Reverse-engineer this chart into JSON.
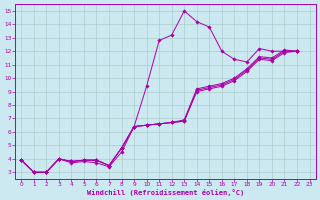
{
  "bg_color": "#cce8f0",
  "grid_color": "#aacccc",
  "line_color": "#aa00aa",
  "xlabel": "Windchill (Refroidissement éolien,°C)",
  "xlim": [
    -0.5,
    23.5
  ],
  "ylim": [
    2.5,
    15.5
  ],
  "xticks": [
    0,
    1,
    2,
    3,
    4,
    5,
    6,
    7,
    8,
    9,
    10,
    11,
    12,
    13,
    14,
    15,
    16,
    17,
    18,
    19,
    20,
    21,
    22,
    23
  ],
  "yticks": [
    3,
    4,
    5,
    6,
    7,
    8,
    9,
    10,
    11,
    12,
    13,
    14,
    15
  ],
  "series": [
    {
      "x": [
        0,
        1,
        2,
        3,
        4,
        5,
        6,
        7,
        8,
        9,
        10,
        11,
        12,
        13,
        14,
        15,
        16,
        17,
        18,
        19,
        20,
        21,
        22
      ],
      "y": [
        3.9,
        3.0,
        3.0,
        4.0,
        3.7,
        3.8,
        3.7,
        3.4,
        4.5,
        6.4,
        9.4,
        12.8,
        13.2,
        15.0,
        14.2,
        13.8,
        12.0,
        11.4,
        11.2,
        12.2,
        12.0,
        12.0,
        12.0
      ]
    },
    {
      "x": [
        0,
        1,
        2,
        3,
        4,
        5,
        6,
        7,
        8,
        9,
        10,
        11,
        12,
        13,
        14,
        15,
        16,
        17,
        18,
        19,
        20,
        21,
        22
      ],
      "y": [
        3.9,
        3.0,
        3.0,
        4.0,
        3.8,
        3.9,
        3.9,
        3.5,
        4.8,
        6.4,
        6.5,
        6.6,
        6.7,
        6.8,
        9.0,
        9.2,
        9.4,
        9.8,
        10.5,
        11.4,
        11.3,
        11.9,
        12.0
      ]
    },
    {
      "x": [
        0,
        1,
        2,
        3,
        4,
        5,
        6,
        7,
        8,
        9,
        10,
        11,
        12,
        13,
        14,
        15,
        16,
        17,
        18,
        19,
        20,
        21,
        22
      ],
      "y": [
        3.9,
        3.0,
        3.0,
        4.0,
        3.8,
        3.9,
        3.9,
        3.5,
        4.8,
        6.4,
        6.5,
        6.6,
        6.7,
        6.8,
        9.1,
        9.3,
        9.5,
        9.9,
        10.6,
        11.5,
        11.4,
        12.0,
        12.0
      ]
    },
    {
      "x": [
        0,
        1,
        2,
        3,
        4,
        5,
        6,
        7,
        8,
        9,
        10,
        11,
        12,
        13,
        14,
        15,
        16,
        17,
        18,
        19,
        20,
        21,
        22
      ],
      "y": [
        3.9,
        3.0,
        3.0,
        4.0,
        3.8,
        3.9,
        3.9,
        3.5,
        4.8,
        6.4,
        6.5,
        6.6,
        6.7,
        6.9,
        9.2,
        9.4,
        9.6,
        10.0,
        10.7,
        11.6,
        11.5,
        12.1,
        12.0
      ]
    }
  ]
}
